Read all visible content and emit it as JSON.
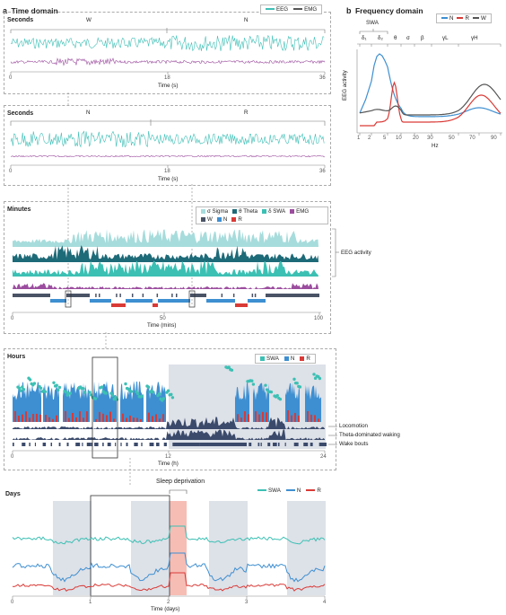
{
  "panel_a": {
    "letter": "a",
    "title": "Time domain"
  },
  "panel_b": {
    "letter": "b",
    "title": "Frequency domain"
  },
  "seconds1": {
    "title": "Seconds",
    "legend": [
      {
        "label": "EEG",
        "color": "#3fbfb6"
      },
      {
        "label": "EMG",
        "color": "#555555"
      }
    ],
    "state_labels": [
      "W",
      "N"
    ],
    "ticks": [
      "0",
      "18",
      "36"
    ],
    "xlabel": "Time (s)"
  },
  "seconds2": {
    "title": "Seconds",
    "state_labels": [
      "N",
      "R"
    ],
    "ticks": [
      "0",
      "18",
      "36"
    ],
    "xlabel": "Time (s)"
  },
  "minutes": {
    "title": "Minutes",
    "legend": [
      {
        "label": "σ Sigma",
        "color": "#a7dcdc"
      },
      {
        "label": "θ Theta",
        "color": "#1d6a78"
      },
      {
        "label": "δ SWA",
        "color": "#3cc0b4"
      },
      {
        "label": "EMG",
        "color": "#9b4d9e"
      },
      {
        "label": "W",
        "color": "#4a5366"
      },
      {
        "label": "N",
        "color": "#3e8fd1"
      },
      {
        "label": "R",
        "color": "#d93a36"
      }
    ],
    "side_label": "EEG activity",
    "ticks": [
      "0",
      "50",
      "100"
    ],
    "xlabel": "Time (mins)"
  },
  "hours": {
    "title": "Hours",
    "legend": [
      {
        "label": "SWA",
        "color": "#3cc0b4"
      },
      {
        "label": "N",
        "color": "#3e8fd1"
      },
      {
        "label": "R",
        "color": "#d93a36"
      }
    ],
    "side_labels": [
      "Locomotion",
      "Theta-dominated waking",
      "Wake bouts"
    ],
    "ticks": [
      "0",
      "12",
      "24"
    ],
    "xlabel": "Time (h)"
  },
  "days": {
    "title": "Days",
    "annotation": "Sleep deprivation",
    "legend": [
      {
        "label": "SWA",
        "color": "#3cc0b4"
      },
      {
        "label": "N",
        "color": "#3e8fd1"
      },
      {
        "label": "R",
        "color": "#d93a36"
      }
    ],
    "ticks": [
      "0",
      "1",
      "2",
      "3",
      "4"
    ],
    "xlabel": "Time (days)"
  },
  "frequency": {
    "legend": [
      {
        "label": "N",
        "color": "#3e8fd1"
      },
      {
        "label": "R",
        "color": "#d93a36"
      },
      {
        "label": "W",
        "color": "#555555"
      }
    ],
    "band_group": "SWA",
    "bands": [
      "δ₁",
      "δ₂",
      "θ",
      "σ",
      "β",
      "γL",
      "γH"
    ],
    "ylabel": "EEG activity",
    "xticks": [
      "1",
      "2",
      "5",
      "10",
      "20",
      "30",
      "50",
      "70",
      "90"
    ],
    "xlabel": "Hz"
  }
}
